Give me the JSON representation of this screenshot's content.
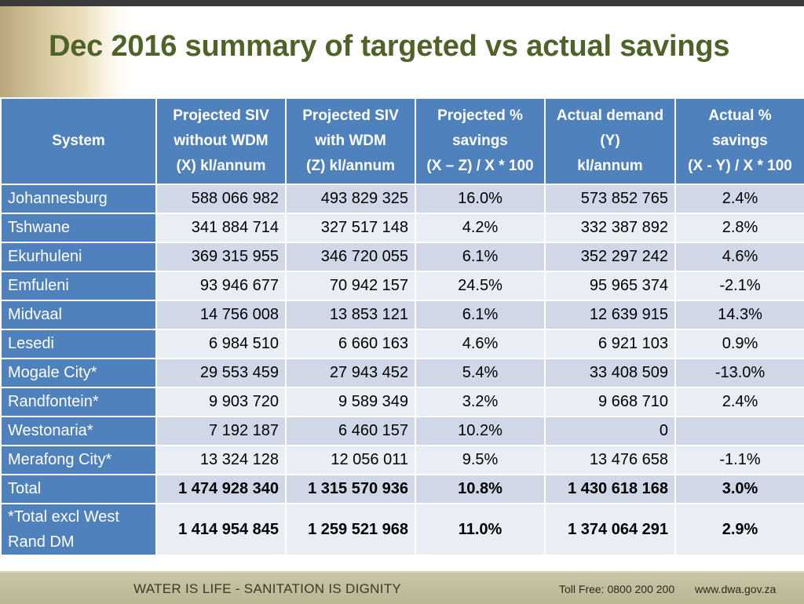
{
  "title": "Dec 2016 summary of targeted vs actual savings",
  "headers": [
    {
      "lines": [
        "System"
      ]
    },
    {
      "lines": [
        "Projected SIV",
        "without WDM",
        "(X) kl/annum"
      ]
    },
    {
      "lines": [
        "Projected SIV",
        "with WDM",
        "(Z) kl/annum"
      ]
    },
    {
      "lines": [
        "Projected %",
        "savings",
        "(X – Z) / X * 100"
      ]
    },
    {
      "lines": [
        "Actual demand",
        "(Y)",
        "kl/annum"
      ]
    },
    {
      "lines": [
        "Actual %",
        "savings",
        "(X - Y) / X * 100"
      ]
    }
  ],
  "rows": [
    {
      "system": "Johannesburg",
      "x": "588 066 982",
      "z": "493 829 325",
      "proj_pct": "16.0%",
      "y": "573 852 765",
      "act_pct": "2.4%"
    },
    {
      "system": "Tshwane",
      "x": "341 884 714",
      "z": "327 517 148",
      "proj_pct": "4.2%",
      "y": "332 387 892",
      "act_pct": "2.8%"
    },
    {
      "system": "Ekurhuleni",
      "x": "369 315 955",
      "z": "346 720 055",
      "proj_pct": "6.1%",
      "y": "352 297 242",
      "act_pct": "4.6%"
    },
    {
      "system": "Emfuleni",
      "x": "93 946 677",
      "z": "70 942 157",
      "proj_pct": "24.5%",
      "y": "95 965 374",
      "act_pct": "-2.1%"
    },
    {
      "system": "Midvaal",
      "x": "14 756 008",
      "z": "13 853 121",
      "proj_pct": "6.1%",
      "y": "12 639 915",
      "act_pct": "14.3%"
    },
    {
      "system": "Lesedi",
      "x": "6 984 510",
      "z": "6 660 163",
      "proj_pct": "4.6%",
      "y": "6 921 103",
      "act_pct": "0.9%"
    },
    {
      "system": "Mogale City*",
      "x": "29 553 459",
      "z": "27 943 452",
      "proj_pct": "5.4%",
      "y": "33 408 509",
      "act_pct": "-13.0%"
    },
    {
      "system": "Randfontein*",
      "x": "9 903 720",
      "z": "9 589 349",
      "proj_pct": "3.2%",
      "y": "9 668 710",
      "act_pct": "2.4%"
    },
    {
      "system": "Westonaria*",
      "x": "7 192 187",
      "z": "6 460 157",
      "proj_pct": "10.2%",
      "y": "0",
      "act_pct": ""
    },
    {
      "system": "Merafong City*",
      "x": "13 324 128",
      "z": "12 056 011",
      "proj_pct": "9.5%",
      "y": "13 476 658",
      "act_pct": "-1.1%"
    }
  ],
  "total": {
    "system": "Total",
    "x": "1 474 928 340",
    "z": "1 315 570 936",
    "proj_pct": "10.8%",
    "y": "1 430 618 168",
    "act_pct": "3.0%"
  },
  "total_excl": {
    "system_lines": [
      "*Total excl West",
      "Rand DM"
    ],
    "x": "1 414 954 845",
    "z": "1 259 521 968",
    "proj_pct": "11.0%",
    "y": "1 374 064 291",
    "act_pct": "2.9%"
  },
  "footer": {
    "slogan": "WATER IS LIFE - SANITATION IS DIGNITY",
    "phone": "Toll Free: 0800 200 200",
    "url": "www.dwa.gov.za"
  },
  "colors": {
    "title": "#4f6228",
    "header": "#4f81bd",
    "row_a": "#d0d8e8",
    "row_b": "#e9edf4"
  }
}
